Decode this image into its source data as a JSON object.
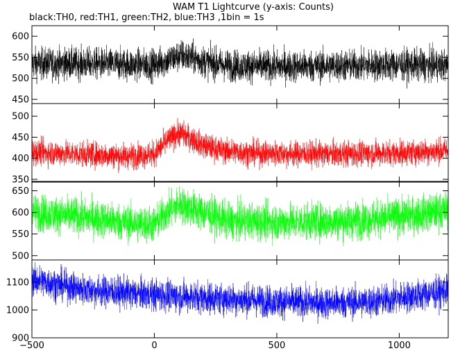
{
  "chart_data": {
    "type": "line",
    "title": "WAM T1 Lightcurve (y-axis: Counts)",
    "subtitle": "black:TH0, red:TH1, green:TH2, blue:TH3 ,1bin = 1s",
    "xlim": [
      -500,
      1200
    ],
    "x_ticks": [
      -500,
      0,
      500,
      1000
    ],
    "panels": [
      {
        "name": "TH0",
        "color": "#000000",
        "ylim": [
          440,
          625
        ],
        "y_ticks": [
          450,
          500,
          550,
          600
        ],
        "trend_x": [
          -500,
          -300,
          0,
          50,
          110,
          200,
          300,
          500,
          800,
          1000,
          1200
        ],
        "trend_y": [
          535,
          535,
          532,
          542,
          555,
          540,
          530,
          528,
          530,
          532,
          530
        ],
        "noise_amplitude": 40
      },
      {
        "name": "TH1",
        "color": "#ff0000",
        "ylim": [
          345,
          530
        ],
        "y_ticks": [
          350,
          400,
          450,
          500
        ],
        "trend_x": [
          -500,
          -300,
          -100,
          0,
          50,
          100,
          150,
          200,
          280,
          400,
          700,
          1000,
          1200
        ],
        "trend_y": [
          415,
          410,
          405,
          410,
          440,
          460,
          448,
          430,
          418,
          412,
          410,
          413,
          418
        ],
        "noise_amplitude": 32
      },
      {
        "name": "TH2",
        "color": "#00ff00",
        "ylim": [
          490,
          670
        ],
        "y_ticks": [
          500,
          550,
          600,
          650
        ],
        "trend_x": [
          -500,
          -300,
          -100,
          0,
          50,
          100,
          200,
          300,
          500,
          800,
          1000,
          1200
        ],
        "trend_y": [
          600,
          590,
          575,
          572,
          600,
          618,
          600,
          580,
          578,
          580,
          590,
          605
        ],
        "noise_amplitude": 45
      },
      {
        "name": "TH3",
        "color": "#0000ff",
        "ylim": [
          900,
          1180
        ],
        "y_ticks": [
          900,
          1000,
          1100
        ],
        "trend_x": [
          -500,
          -300,
          -100,
          100,
          300,
          500,
          700,
          900,
          1100,
          1200
        ],
        "trend_y": [
          1110,
          1075,
          1060,
          1050,
          1040,
          1030,
          1025,
          1030,
          1055,
          1070
        ],
        "noise_amplitude": 60
      }
    ]
  }
}
